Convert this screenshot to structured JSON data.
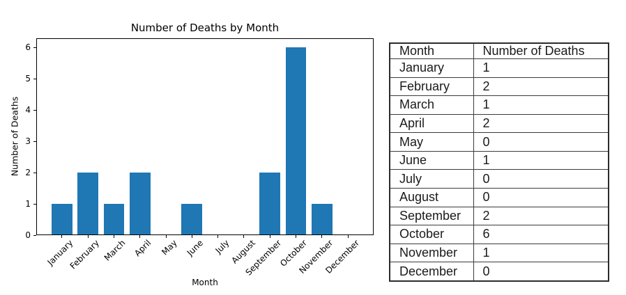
{
  "chart_data": {
    "type": "bar",
    "title": "Number of Deaths by Month",
    "xlabel": "Month",
    "ylabel": "Number of Deaths",
    "categories": [
      "January",
      "February",
      "March",
      "April",
      "May",
      "June",
      "July",
      "August",
      "September",
      "October",
      "November",
      "December"
    ],
    "values": [
      1,
      2,
      1,
      2,
      0,
      1,
      0,
      0,
      2,
      6,
      1,
      0
    ],
    "ylim": [
      0,
      6.3
    ],
    "yticks": [
      0,
      1,
      2,
      3,
      4,
      5,
      6
    ],
    "bar_color": "#1f77b4",
    "grid": false,
    "x_tick_rotation": 45,
    "legend": "none"
  },
  "table": {
    "headers": [
      "Month",
      "Number of Deaths"
    ],
    "rows": [
      [
        "January",
        "1"
      ],
      [
        "February",
        "2"
      ],
      [
        "March",
        "1"
      ],
      [
        "April",
        "2"
      ],
      [
        "May",
        "0"
      ],
      [
        "June",
        "1"
      ],
      [
        "July",
        "0"
      ],
      [
        "August",
        "0"
      ],
      [
        "September",
        "2"
      ],
      [
        "October",
        "6"
      ],
      [
        "November",
        "1"
      ],
      [
        "December",
        "0"
      ]
    ]
  }
}
